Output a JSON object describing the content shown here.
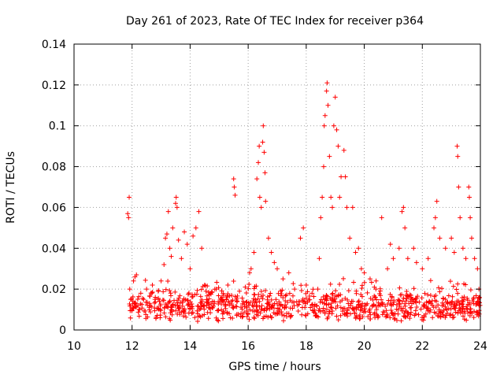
{
  "chart_data": {
    "type": "scatter",
    "title": "Day 261 of 2023, Rate Of TEC Index for receiver p364",
    "xlabel": "GPS time / hours",
    "ylabel": "ROTI / TECUs",
    "xlim": [
      10,
      24
    ],
    "ylim": [
      0,
      0.14
    ],
    "x_ticks": [
      10,
      12,
      14,
      16,
      18,
      20,
      22,
      24
    ],
    "x_tick_labels": [
      "10",
      "12",
      "14",
      "16",
      "18",
      "20",
      "22",
      "24"
    ],
    "y_ticks": [
      0,
      0.02,
      0.04,
      0.06,
      0.08,
      0.1,
      0.12,
      0.14
    ],
    "y_tick_labels": [
      "0",
      "0.02",
      "0.04",
      "0.06",
      "0.08",
      "0.1",
      "0.12",
      "0.14"
    ],
    "grid": true,
    "marker": "plus",
    "color": "#ff0000",
    "series": [
      {
        "name": "ROTI",
        "points": [
          [
            11.85,
            0.057
          ],
          [
            11.88,
            0.055
          ],
          [
            11.9,
            0.065
          ],
          [
            11.92,
            0.02
          ],
          [
            11.95,
            0.015
          ],
          [
            12.0,
            0.01
          ],
          [
            12.05,
            0.024
          ],
          [
            12.1,
            0.026
          ],
          [
            12.15,
            0.027
          ],
          [
            12.2,
            0.012
          ],
          [
            12.3,
            0.018
          ],
          [
            12.4,
            0.015
          ],
          [
            12.5,
            0.02
          ],
          [
            12.6,
            0.013
          ],
          [
            12.7,
            0.022
          ],
          [
            12.8,
            0.016
          ],
          [
            12.9,
            0.019
          ],
          [
            13.0,
            0.024
          ],
          [
            13.1,
            0.032
          ],
          [
            13.15,
            0.045
          ],
          [
            13.2,
            0.047
          ],
          [
            13.25,
            0.058
          ],
          [
            13.3,
            0.04
          ],
          [
            13.35,
            0.036
          ],
          [
            13.4,
            0.05
          ],
          [
            13.5,
            0.062
          ],
          [
            13.52,
            0.065
          ],
          [
            13.55,
            0.06
          ],
          [
            13.6,
            0.044
          ],
          [
            13.7,
            0.035
          ],
          [
            13.8,
            0.048
          ],
          [
            13.9,
            0.042
          ],
          [
            14.0,
            0.03
          ],
          [
            14.1,
            0.046
          ],
          [
            14.2,
            0.05
          ],
          [
            14.3,
            0.058
          ],
          [
            14.4,
            0.04
          ],
          [
            14.5,
            0.022
          ],
          [
            14.7,
            0.018
          ],
          [
            14.9,
            0.02
          ],
          [
            15.1,
            0.016
          ],
          [
            15.3,
            0.022
          ],
          [
            15.5,
            0.074
          ],
          [
            15.52,
            0.07
          ],
          [
            15.55,
            0.066
          ],
          [
            15.7,
            0.019
          ],
          [
            15.9,
            0.021
          ],
          [
            16.05,
            0.028
          ],
          [
            16.1,
            0.03
          ],
          [
            16.2,
            0.038
          ],
          [
            16.3,
            0.074
          ],
          [
            16.35,
            0.082
          ],
          [
            16.38,
            0.09
          ],
          [
            16.4,
            0.065
          ],
          [
            16.45,
            0.06
          ],
          [
            16.5,
            0.092
          ],
          [
            16.52,
            0.1
          ],
          [
            16.55,
            0.087
          ],
          [
            16.58,
            0.077
          ],
          [
            16.6,
            0.063
          ],
          [
            16.7,
            0.045
          ],
          [
            16.8,
            0.038
          ],
          [
            16.9,
            0.033
          ],
          [
            17.0,
            0.03
          ],
          [
            17.2,
            0.025
          ],
          [
            17.4,
            0.028
          ],
          [
            17.6,
            0.02
          ],
          [
            17.8,
            0.045
          ],
          [
            17.9,
            0.05
          ],
          [
            18.0,
            0.022
          ],
          [
            18.2,
            0.018
          ],
          [
            18.4,
            0.02
          ],
          [
            18.45,
            0.035
          ],
          [
            18.5,
            0.055
          ],
          [
            18.55,
            0.065
          ],
          [
            18.6,
            0.08
          ],
          [
            18.62,
            0.1
          ],
          [
            18.65,
            0.105
          ],
          [
            18.7,
            0.117
          ],
          [
            18.72,
            0.121
          ],
          [
            18.75,
            0.11
          ],
          [
            18.8,
            0.085
          ],
          [
            18.85,
            0.065
          ],
          [
            18.9,
            0.06
          ],
          [
            18.95,
            0.1
          ],
          [
            19.0,
            0.114
          ],
          [
            19.05,
            0.098
          ],
          [
            19.1,
            0.09
          ],
          [
            19.15,
            0.065
          ],
          [
            19.2,
            0.075
          ],
          [
            19.3,
            0.088
          ],
          [
            19.35,
            0.075
          ],
          [
            19.4,
            0.06
          ],
          [
            19.5,
            0.045
          ],
          [
            19.6,
            0.06
          ],
          [
            19.7,
            0.038
          ],
          [
            19.8,
            0.04
          ],
          [
            19.9,
            0.03
          ],
          [
            20.0,
            0.028
          ],
          [
            20.2,
            0.025
          ],
          [
            20.4,
            0.02
          ],
          [
            20.6,
            0.055
          ],
          [
            20.8,
            0.03
          ],
          [
            20.9,
            0.042
          ],
          [
            21.0,
            0.035
          ],
          [
            21.2,
            0.04
          ],
          [
            21.3,
            0.058
          ],
          [
            21.35,
            0.06
          ],
          [
            21.4,
            0.05
          ],
          [
            21.5,
            0.035
          ],
          [
            21.7,
            0.04
          ],
          [
            21.8,
            0.033
          ],
          [
            22.0,
            0.03
          ],
          [
            22.2,
            0.035
          ],
          [
            22.4,
            0.05
          ],
          [
            22.45,
            0.055
          ],
          [
            22.5,
            0.063
          ],
          [
            22.6,
            0.045
          ],
          [
            22.8,
            0.04
          ],
          [
            23.0,
            0.045
          ],
          [
            23.1,
            0.038
          ],
          [
            23.2,
            0.09
          ],
          [
            23.22,
            0.085
          ],
          [
            23.25,
            0.07
          ],
          [
            23.3,
            0.055
          ],
          [
            23.4,
            0.04
          ],
          [
            23.5,
            0.035
          ],
          [
            23.6,
            0.07
          ],
          [
            23.62,
            0.065
          ],
          [
            23.65,
            0.055
          ],
          [
            23.7,
            0.045
          ],
          [
            23.8,
            0.035
          ],
          [
            23.9,
            0.03
          ],
          [
            23.95,
            0.02
          ]
        ],
        "dense_band": {
          "x_range": [
            11.9,
            24.0
          ],
          "y_range": [
            0.004,
            0.026
          ],
          "typical": 0.012,
          "approx_count": 900
        }
      }
    ]
  }
}
